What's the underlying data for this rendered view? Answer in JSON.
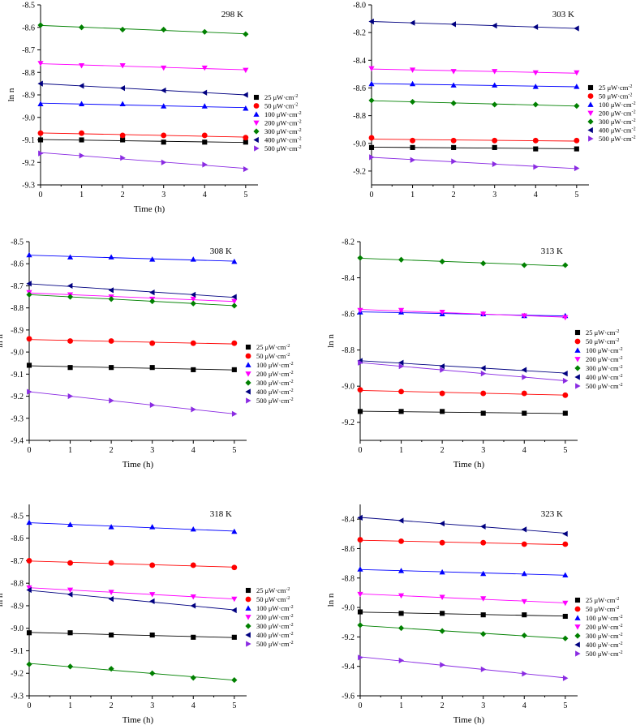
{
  "colors": {
    "25": "#000000",
    "50": "#ff0000",
    "100": "#0000ff",
    "200": "#ff00ff",
    "300": "#008000",
    "400": "#000080",
    "500": "#8a2be2"
  },
  "series_order": [
    "25",
    "50",
    "100",
    "200",
    "300",
    "400",
    "500"
  ],
  "markers": {
    "25": "square",
    "50": "circle",
    "100": "triangle-up",
    "200": "triangle-down",
    "300": "diamond",
    "400": "triangle-left",
    "500": "triangle-right"
  },
  "chart_data": [
    {
      "type": "scatter",
      "title": "298 K",
      "xlabel": "Time (h)",
      "ylabel": "ln n",
      "xlim": [
        0,
        5.3
      ],
      "ylim": [
        -9.3,
        -8.5
      ],
      "xticks": [
        "0",
        "1",
        "2",
        "3",
        "4",
        "5"
      ],
      "yticks": [
        "-8.5",
        "-8.6",
        "-8.7",
        "-8.8",
        "-8.9",
        "-9.0",
        "-9.1",
        "-9.2",
        "-9.3"
      ],
      "x": [
        0,
        1,
        2,
        3,
        4,
        5
      ],
      "series": [
        {
          "name": "25 μW·cm⁻²",
          "key": "25",
          "values": [
            -9.1,
            -9.1,
            -9.1,
            -9.11,
            -9.11,
            -9.11
          ]
        },
        {
          "name": "50 μW·cm⁻²",
          "key": "50",
          "values": [
            -9.07,
            -9.07,
            -9.08,
            -9.08,
            -9.08,
            -9.09
          ]
        },
        {
          "name": "100 μW·cm⁻²",
          "key": "100",
          "values": [
            -8.94,
            -8.94,
            -8.94,
            -8.95,
            -8.95,
            -8.96
          ]
        },
        {
          "name": "200 μW·cm⁻²",
          "key": "200",
          "values": [
            -8.76,
            -8.77,
            -8.77,
            -8.78,
            -8.78,
            -8.79
          ]
        },
        {
          "name": "300 μW·cm⁻²",
          "key": "300",
          "values": [
            -8.59,
            -8.6,
            -8.61,
            -8.61,
            -8.62,
            -8.63
          ]
        },
        {
          "name": "400 μW·cm⁻²",
          "key": "400",
          "values": [
            -8.85,
            -8.86,
            -8.87,
            -8.88,
            -8.89,
            -8.9
          ]
        },
        {
          "name": "500 μW·cm⁻²",
          "key": "500",
          "values": [
            -9.16,
            -9.17,
            -9.18,
            -9.2,
            -9.21,
            -9.23
          ]
        }
      ]
    },
    {
      "type": "scatter",
      "title": "303 K",
      "xlabel": "",
      "ylabel": "",
      "xlim": [
        0,
        5.3
      ],
      "ylim": [
        -9.3,
        -8.0
      ],
      "xticks": [
        "0",
        "1",
        "2",
        "3",
        "4",
        "5"
      ],
      "yticks": [
        "-8.0",
        "-8.2",
        "-8.4",
        "-8.6",
        "-8.8",
        "-9.0",
        "-9.2"
      ],
      "x": [
        0,
        1,
        2,
        3,
        4,
        5
      ],
      "series": [
        {
          "name": "25 μW·cm⁻²",
          "key": "25",
          "values": [
            -9.03,
            -9.03,
            -9.03,
            -9.03,
            -9.04,
            -9.04
          ]
        },
        {
          "name": "50 μW·cm⁻²",
          "key": "50",
          "values": [
            -8.96,
            -8.98,
            -8.98,
            -8.98,
            -8.98,
            -8.98
          ]
        },
        {
          "name": "100 μW·cm⁻²",
          "key": "100",
          "values": [
            -8.57,
            -8.57,
            -8.58,
            -8.58,
            -8.59,
            -8.59
          ]
        },
        {
          "name": "200 μW·cm⁻²",
          "key": "200",
          "values": [
            -8.46,
            -8.47,
            -8.48,
            -8.48,
            -8.49,
            -8.49
          ]
        },
        {
          "name": "300 μW·cm⁻²",
          "key": "300",
          "values": [
            -8.69,
            -8.7,
            -8.71,
            -8.72,
            -8.72,
            -8.73
          ]
        },
        {
          "name": "400 μW·cm⁻²",
          "key": "400",
          "values": [
            -8.12,
            -8.13,
            -8.14,
            -8.15,
            -8.16,
            -8.17
          ]
        },
        {
          "name": "500 μW·cm⁻²",
          "key": "500",
          "values": [
            -9.1,
            -9.12,
            -9.13,
            -9.15,
            -9.17,
            -9.18
          ]
        }
      ]
    },
    {
      "type": "scatter",
      "title": "308 K",
      "xlabel": "Time (h)",
      "ylabel": "ln n",
      "xlim": [
        0,
        5.3
      ],
      "ylim": [
        -9.4,
        -8.5
      ],
      "xticks": [
        "0",
        "1",
        "2",
        "3",
        "4",
        "5"
      ],
      "yticks": [
        "-8.5",
        "-8.6",
        "-8.7",
        "-8.8",
        "-8.9",
        "-9.0",
        "-9.1",
        "-9.2",
        "-9.3",
        "-9.4"
      ],
      "x": [
        0,
        1,
        2,
        3,
        4,
        5
      ],
      "series": [
        {
          "name": "25 μW·cm⁻²",
          "key": "25",
          "values": [
            -9.06,
            -9.07,
            -9.07,
            -9.07,
            -9.08,
            -9.08
          ]
        },
        {
          "name": "50 μW·cm⁻²",
          "key": "50",
          "values": [
            -8.94,
            -8.95,
            -8.95,
            -8.96,
            -8.96,
            -8.96
          ]
        },
        {
          "name": "100 μW·cm⁻²",
          "key": "100",
          "values": [
            -8.56,
            -8.57,
            -8.57,
            -8.58,
            -8.58,
            -8.59
          ]
        },
        {
          "name": "200 μW·cm⁻²",
          "key": "200",
          "values": [
            -8.73,
            -8.74,
            -8.75,
            -8.76,
            -8.76,
            -8.77
          ]
        },
        {
          "name": "300 μW·cm⁻²",
          "key": "300",
          "values": [
            -8.74,
            -8.75,
            -8.76,
            -8.77,
            -8.78,
            -8.79
          ]
        },
        {
          "name": "400 μW·cm⁻²",
          "key": "400",
          "values": [
            -8.69,
            -8.7,
            -8.72,
            -8.73,
            -8.74,
            -8.75
          ]
        },
        {
          "name": "500 μW·cm⁻²",
          "key": "500",
          "values": [
            -9.18,
            -9.2,
            -9.22,
            -9.24,
            -9.26,
            -9.28
          ]
        }
      ]
    },
    {
      "type": "scatter",
      "title": "313 K",
      "xlabel": "Time (h)",
      "ylabel": "ln n",
      "xlim": [
        0,
        5.3
      ],
      "ylim": [
        -9.3,
        -8.2
      ],
      "xticks": [
        "0",
        "1",
        "2",
        "3",
        "4",
        "5"
      ],
      "yticks": [
        "-8.2",
        "-8.4",
        "-8.6",
        "-8.8",
        "-9.0",
        "-9.2"
      ],
      "x": [
        0,
        1,
        2,
        3,
        4,
        5
      ],
      "series": [
        {
          "name": "25 μW·cm⁻²",
          "key": "25",
          "values": [
            -9.14,
            -9.14,
            -9.14,
            -9.15,
            -9.15,
            -9.15
          ]
        },
        {
          "name": "50 μW·cm⁻²",
          "key": "50",
          "values": [
            -9.02,
            -9.03,
            -9.04,
            -9.04,
            -9.04,
            -9.05
          ]
        },
        {
          "name": "100 μW·cm⁻²",
          "key": "100",
          "values": [
            -8.59,
            -8.59,
            -8.6,
            -8.6,
            -8.61,
            -8.61
          ]
        },
        {
          "name": "200 μW·cm⁻²",
          "key": "200",
          "values": [
            -8.58,
            -8.58,
            -8.59,
            -8.6,
            -8.61,
            -8.62
          ]
        },
        {
          "name": "300 μW·cm⁻²",
          "key": "300",
          "values": [
            -8.29,
            -8.3,
            -8.31,
            -8.32,
            -8.33,
            -8.33
          ]
        },
        {
          "name": "400 μW·cm⁻²",
          "key": "400",
          "values": [
            -8.86,
            -8.87,
            -8.89,
            -8.9,
            -8.91,
            -8.93
          ]
        },
        {
          "name": "500 μW·cm⁻²",
          "key": "500",
          "values": [
            -8.87,
            -8.89,
            -8.91,
            -8.93,
            -8.95,
            -8.97
          ]
        }
      ]
    },
    {
      "type": "scatter",
      "title": "318 K",
      "xlabel": "Time (h)",
      "ylabel": "ln n",
      "xlim": [
        0,
        5.3
      ],
      "ylim": [
        -9.3,
        -8.45
      ],
      "xticks": [
        "0",
        "1",
        "2",
        "3",
        "4",
        "5"
      ],
      "yticks": [
        "-8.5",
        "-8.6",
        "-8.7",
        "-8.8",
        "-8.9",
        "-9.0",
        "-9.1",
        "-9.2",
        "-9.3"
      ],
      "x": [
        0,
        1,
        2,
        3,
        4,
        5
      ],
      "series": [
        {
          "name": "25 μW·cm⁻²",
          "key": "25",
          "values": [
            -9.02,
            -9.02,
            -9.03,
            -9.03,
            -9.04,
            -9.04
          ]
        },
        {
          "name": "50 μW·cm⁻²",
          "key": "50",
          "values": [
            -8.7,
            -8.71,
            -8.71,
            -8.72,
            -8.72,
            -8.73
          ]
        },
        {
          "name": "100 μW·cm⁻²",
          "key": "100",
          "values": [
            -8.53,
            -8.54,
            -8.55,
            -8.55,
            -8.56,
            -8.57
          ]
        },
        {
          "name": "200 μW·cm⁻²",
          "key": "200",
          "values": [
            -8.82,
            -8.83,
            -8.84,
            -8.85,
            -8.86,
            -8.87
          ]
        },
        {
          "name": "300 μW·cm⁻²",
          "key": "300",
          "values": [
            -9.16,
            -9.17,
            -9.18,
            -9.2,
            -9.22,
            -9.23
          ]
        },
        {
          "name": "400 μW·cm⁻²",
          "key": "400",
          "values": [
            -8.83,
            -8.85,
            -8.87,
            -8.88,
            -8.9,
            -8.92
          ]
        },
        {
          "name": "500 μW·cm⁻²",
          "key": "500",
          "values": []
        }
      ]
    },
    {
      "type": "scatter",
      "title": "323 K",
      "xlabel": "Time (h)",
      "ylabel": "ln n",
      "xlim": [
        0,
        5.3
      ],
      "ylim": [
        -9.6,
        -8.3
      ],
      "xticks": [
        "0",
        "1",
        "2",
        "3",
        "4",
        "5"
      ],
      "yticks": [
        "-8.4",
        "-8.6",
        "-8.8",
        "-9.0",
        "-9.2",
        "-9.4",
        "-9.6"
      ],
      "x": [
        0,
        1,
        2,
        3,
        4,
        5
      ],
      "series": [
        {
          "name": "25 μW·cm⁻²",
          "key": "25",
          "values": [
            -9.03,
            -9.04,
            -9.04,
            -9.05,
            -9.05,
            -9.06
          ]
        },
        {
          "name": "50 μW·cm⁻²",
          "key": "50",
          "values": [
            -8.54,
            -8.55,
            -8.56,
            -8.56,
            -8.57,
            -8.57
          ]
        },
        {
          "name": "100 μW·cm⁻²",
          "key": "100",
          "values": [
            -8.74,
            -8.75,
            -8.76,
            -8.77,
            -8.77,
            -8.78
          ]
        },
        {
          "name": "200 μW·cm⁻²",
          "key": "200",
          "values": [
            -8.91,
            -8.92,
            -8.93,
            -8.94,
            -8.96,
            -8.97
          ]
        },
        {
          "name": "300 μW·cm⁻²",
          "key": "300",
          "values": [
            -9.12,
            -9.14,
            -9.16,
            -9.18,
            -9.19,
            -9.21
          ]
        },
        {
          "name": "400 μW·cm⁻²",
          "key": "400",
          "values": [
            -8.39,
            -8.41,
            -8.43,
            -8.45,
            -8.47,
            -8.5
          ]
        },
        {
          "name": "500 μW·cm⁻²",
          "key": "500",
          "values": [
            -9.34,
            -9.36,
            -9.39,
            -9.42,
            -9.45,
            -9.48
          ]
        }
      ]
    }
  ]
}
